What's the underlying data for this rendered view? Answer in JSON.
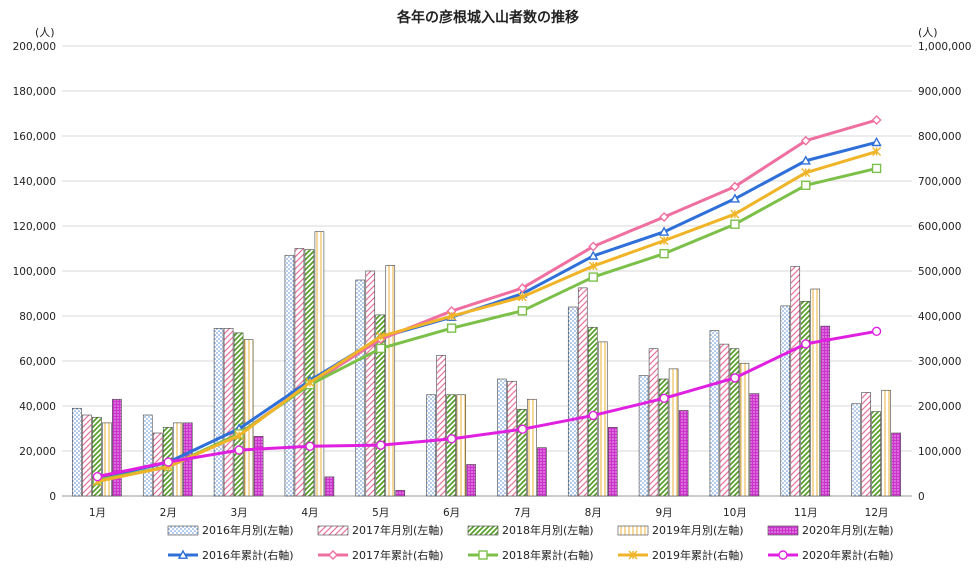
{
  "chart_data": {
    "type": "bar",
    "title": "各年の彦根城入山者数の推移",
    "ylabel_left_unit": "(人)",
    "ylabel_right_unit": "(人)",
    "categories": [
      "1月",
      "2月",
      "3月",
      "4月",
      "5月",
      "6月",
      "7月",
      "8月",
      "9月",
      "10月",
      "11月",
      "12月"
    ],
    "ylim_left": [
      0,
      200000
    ],
    "ylim_right": [
      0,
      1000000
    ],
    "yticks_left": [
      "0",
      "20,000",
      "40,000",
      "60,000",
      "80,000",
      "100,000",
      "120,000",
      "140,000",
      "160,000",
      "180,000",
      "200,000"
    ],
    "yticks_right": [
      "0",
      "100,000",
      "200,000",
      "300,000",
      "400,000",
      "500,000",
      "600,000",
      "700,000",
      "800,000",
      "900,000",
      "1,000,000"
    ],
    "grid": true,
    "legend_position": "bottom",
    "bar_series": [
      {
        "name": "2016年月別(左軸)",
        "color": "#5b8fd6",
        "pattern": "dots",
        "values": [
          39000,
          36000,
          74500,
          107000,
          96000,
          45000,
          52000,
          84000,
          53500,
          73500,
          84500,
          41000
        ]
      },
      {
        "name": "2017年月別(左軸)",
        "color": "#e8739a",
        "pattern": "diag",
        "values": [
          36000,
          28000,
          74500,
          110000,
          100000,
          62500,
          51000,
          92500,
          65500,
          67500,
          102000,
          46000
        ]
      },
      {
        "name": "2018年月別(左軸)",
        "color": "#7cc04a",
        "pattern": "hatch",
        "values": [
          35000,
          30500,
          72500,
          109500,
          80500,
          45000,
          38500,
          75000,
          52000,
          65500,
          86500,
          37500
        ]
      },
      {
        "name": "2019年月別(左軸)",
        "color": "#e8b23a",
        "pattern": "vert",
        "values": [
          32500,
          32500,
          69500,
          117500,
          102500,
          45000,
          43000,
          68500,
          56500,
          59000,
          92000,
          47000
        ]
      },
      {
        "name": "2020年月別(左軸)",
        "color": "#cc33cc",
        "pattern": "dense",
        "values": [
          43000,
          32500,
          26500,
          8500,
          2500,
          14000,
          21500,
          30500,
          38000,
          45500,
          75500,
          28000
        ]
      }
    ],
    "line_series": [
      {
        "name": "2016年累計(右軸)",
        "color": "#2e6fd8",
        "marker": "triangle",
        "values": [
          39000,
          75000,
          149500,
          256500,
          352500,
          397500,
          449500,
          533500,
          587000,
          660500,
          745000,
          786000
        ]
      },
      {
        "name": "2017年累計(右軸)",
        "color": "#ee6fa0",
        "marker": "diamond",
        "values": [
          36000,
          64000,
          138500,
          248500,
          348500,
          411000,
          462000,
          554500,
          620000,
          687500,
          789500,
          835500
        ]
      },
      {
        "name": "2018年累計(右軸)",
        "color": "#7cc04a",
        "marker": "square",
        "values": [
          35000,
          65500,
          138000,
          247500,
          328000,
          373000,
          411500,
          486500,
          538500,
          604000,
          690500,
          728000
        ]
      },
      {
        "name": "2019年累計(右軸)",
        "color": "#f0b428",
        "marker": "star",
        "values": [
          32500,
          65000,
          134500,
          252000,
          354500,
          399500,
          442500,
          511000,
          567500,
          626500,
          718500,
          765500
        ]
      },
      {
        "name": "2020年累計(右軸)",
        "color": "#e020e0",
        "marker": "circle",
        "values": [
          43000,
          75500,
          102000,
          110500,
          113000,
          127000,
          148500,
          179000,
          217000,
          262500,
          338000,
          366000
        ]
      }
    ]
  }
}
